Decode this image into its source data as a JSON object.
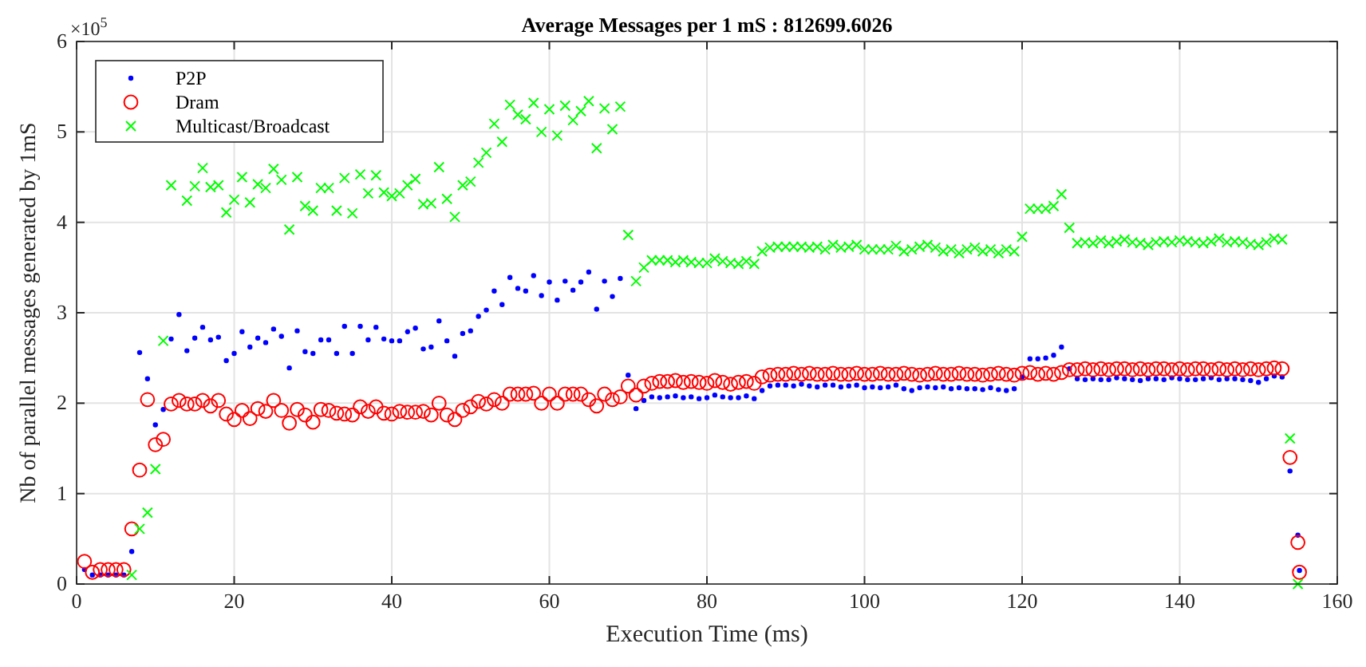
{
  "chart_data": {
    "type": "scatter",
    "title": "Average Messages per 1 mS : 812699.6026",
    "xlabel": "Execution Time (ms)",
    "ylabel": "Nb of parallel messages generated by 1mS",
    "annotations": [
      "×10$^{5}$"
    ],
    "xlim": [
      0,
      160
    ],
    "xticks": [
      0,
      20,
      40,
      60,
      80,
      100,
      120,
      140,
      160
    ],
    "ylim": [
      0,
      6
    ],
    "yticks": [
      0,
      1,
      2,
      3,
      4,
      5,
      6
    ],
    "grid": true,
    "legend": "top left",
    "series": [
      {
        "name": "P2P",
        "color": "#0000ff",
        "marker": "point",
        "x": [
          1,
          2,
          3,
          4,
          5,
          6,
          7,
          8,
          9,
          10,
          11,
          12,
          13,
          14,
          15,
          16,
          17,
          18,
          19,
          20,
          21,
          22,
          23,
          24,
          25,
          26,
          27,
          28,
          29,
          30,
          31,
          32,
          33,
          34,
          35,
          36,
          37,
          38,
          39,
          40,
          41,
          42,
          43,
          44,
          45,
          46,
          47,
          48,
          49,
          50,
          51,
          52,
          53,
          54,
          55,
          56,
          57,
          58,
          59,
          60,
          61,
          62,
          63,
          64,
          65,
          66,
          67,
          68,
          69,
          70,
          71,
          72,
          73,
          74,
          75,
          76,
          77,
          78,
          79,
          80,
          81,
          82,
          83,
          84,
          85,
          86,
          87,
          88,
          89,
          90,
          91,
          92,
          93,
          94,
          95,
          96,
          97,
          98,
          99,
          100,
          101,
          102,
          103,
          104,
          105,
          106,
          107,
          108,
          109,
          110,
          111,
          112,
          113,
          114,
          115,
          116,
          117,
          118,
          119,
          120,
          121,
          122,
          123,
          124,
          125,
          126,
          127,
          128,
          129,
          130,
          131,
          132,
          133,
          134,
          135,
          136,
          137,
          138,
          139,
          140,
          141,
          142,
          143,
          144,
          145,
          146,
          147,
          148,
          149,
          150,
          151,
          152,
          153,
          154,
          155,
          155.2
        ],
        "values": [
          0.16,
          0.1,
          0.1,
          0.1,
          0.1,
          0.1,
          0.36,
          2.56,
          2.27,
          1.76,
          1.93,
          2.71,
          2.98,
          2.58,
          2.72,
          2.84,
          2.7,
          2.73,
          2.47,
          2.55,
          2.79,
          2.62,
          2.72,
          2.67,
          2.82,
          2.74,
          2.39,
          2.8,
          2.57,
          2.55,
          2.7,
          2.7,
          2.55,
          2.85,
          2.55,
          2.85,
          2.7,
          2.84,
          2.71,
          2.69,
          2.69,
          2.79,
          2.83,
          2.6,
          2.62,
          2.91,
          2.69,
          2.52,
          2.77,
          2.8,
          2.96,
          3.03,
          3.24,
          3.09,
          3.39,
          3.27,
          3.24,
          3.41,
          3.19,
          3.34,
          3.14,
          3.35,
          3.25,
          3.34,
          3.45,
          3.04,
          3.35,
          3.18,
          3.38,
          2.31,
          1.94,
          2.03,
          2.07,
          2.06,
          2.07,
          2.08,
          2.06,
          2.07,
          2.05,
          2.06,
          2.09,
          2.07,
          2.06,
          2.06,
          2.08,
          2.05,
          2.14,
          2.19,
          2.2,
          2.2,
          2.19,
          2.21,
          2.19,
          2.18,
          2.2,
          2.2,
          2.18,
          2.19,
          2.2,
          2.17,
          2.18,
          2.17,
          2.18,
          2.2,
          2.16,
          2.14,
          2.17,
          2.18,
          2.17,
          2.18,
          2.16,
          2.17,
          2.16,
          2.16,
          2.15,
          2.17,
          2.15,
          2.14,
          2.16,
          2.29,
          2.49,
          2.49,
          2.5,
          2.53,
          2.62,
          2.38,
          2.27,
          2.26,
          2.27,
          2.26,
          2.26,
          2.28,
          2.27,
          2.26,
          2.25,
          2.27,
          2.27,
          2.26,
          2.28,
          2.27,
          2.26,
          2.26,
          2.27,
          2.28,
          2.26,
          2.27,
          2.27,
          2.26,
          2.25,
          2.23,
          2.27,
          2.3,
          2.29,
          1.25,
          0.54,
          0.15
        ]
      },
      {
        "name": "Dram",
        "color": "#ff0000",
        "marker": "circle",
        "x": [
          1,
          2,
          3,
          4,
          5,
          6,
          7,
          8,
          9,
          10,
          11,
          12,
          13,
          14,
          15,
          16,
          17,
          18,
          19,
          20,
          21,
          22,
          23,
          24,
          25,
          26,
          27,
          28,
          29,
          30,
          31,
          32,
          33,
          34,
          35,
          36,
          37,
          38,
          39,
          40,
          41,
          42,
          43,
          44,
          45,
          46,
          47,
          48,
          49,
          50,
          51,
          52,
          53,
          54,
          55,
          56,
          57,
          58,
          59,
          60,
          61,
          62,
          63,
          64,
          65,
          66,
          67,
          68,
          69,
          70,
          71,
          72,
          73,
          74,
          75,
          76,
          77,
          78,
          79,
          80,
          81,
          82,
          83,
          84,
          85,
          86,
          87,
          88,
          89,
          90,
          91,
          92,
          93,
          94,
          95,
          96,
          97,
          98,
          99,
          100,
          101,
          102,
          103,
          104,
          105,
          106,
          107,
          108,
          109,
          110,
          111,
          112,
          113,
          114,
          115,
          116,
          117,
          118,
          119,
          120,
          121,
          122,
          123,
          124,
          125,
          126,
          127,
          128,
          129,
          130,
          131,
          132,
          133,
          134,
          135,
          136,
          137,
          138,
          139,
          140,
          141,
          142,
          143,
          144,
          145,
          146,
          147,
          148,
          149,
          150,
          151,
          152,
          153,
          154,
          155,
          155.2
        ],
        "values": [
          0.25,
          0.13,
          0.16,
          0.16,
          0.16,
          0.16,
          0.61,
          1.26,
          2.04,
          1.54,
          1.6,
          1.99,
          2.03,
          1.99,
          1.99,
          2.03,
          1.97,
          2.03,
          1.88,
          1.82,
          1.92,
          1.83,
          1.94,
          1.91,
          2.03,
          1.92,
          1.78,
          1.93,
          1.87,
          1.79,
          1.93,
          1.92,
          1.89,
          1.88,
          1.87,
          1.96,
          1.91,
          1.96,
          1.89,
          1.88,
          1.91,
          1.9,
          1.9,
          1.91,
          1.87,
          2,
          1.87,
          1.82,
          1.92,
          1.96,
          2.02,
          1.99,
          2.04,
          2,
          2.1,
          2.1,
          2.1,
          2.11,
          2,
          2.1,
          2,
          2.1,
          2.1,
          2.1,
          2.04,
          1.97,
          2.1,
          2.04,
          2.07,
          2.19,
          2.09,
          2.19,
          2.22,
          2.24,
          2.24,
          2.25,
          2.23,
          2.24,
          2.23,
          2.22,
          2.25,
          2.23,
          2.21,
          2.23,
          2.24,
          2.22,
          2.29,
          2.31,
          2.32,
          2.32,
          2.33,
          2.32,
          2.33,
          2.32,
          2.32,
          2.33,
          2.32,
          2.32,
          2.33,
          2.32,
          2.32,
          2.33,
          2.32,
          2.32,
          2.33,
          2.32,
          2.31,
          2.32,
          2.33,
          2.32,
          2.32,
          2.33,
          2.32,
          2.32,
          2.31,
          2.32,
          2.33,
          2.32,
          2.31,
          2.33,
          2.34,
          2.32,
          2.33,
          2.32,
          2.34,
          2.37,
          2.37,
          2.38,
          2.37,
          2.38,
          2.37,
          2.38,
          2.38,
          2.37,
          2.38,
          2.37,
          2.38,
          2.38,
          2.37,
          2.38,
          2.37,
          2.38,
          2.38,
          2.37,
          2.38,
          2.37,
          2.38,
          2.37,
          2.38,
          2.37,
          2.38,
          2.39,
          2.38,
          1.4,
          0.46,
          0.13
        ]
      },
      {
        "name": "Multicast/Broadcast",
        "color": "#00ff00",
        "marker": "cross",
        "x": [
          7,
          8,
          9,
          10,
          11,
          12,
          14,
          15,
          16,
          17,
          18,
          19,
          20,
          21,
          22,
          23,
          24,
          25,
          26,
          27,
          28,
          29,
          30,
          31,
          32,
          33,
          34,
          35,
          36,
          37,
          38,
          39,
          40,
          41,
          42,
          43,
          44,
          45,
          46,
          47,
          48,
          49,
          50,
          51,
          52,
          53,
          54,
          55,
          56,
          57,
          58,
          59,
          60,
          61,
          62,
          63,
          64,
          65,
          66,
          67,
          68,
          69,
          70,
          71,
          72,
          73,
          74,
          75,
          76,
          77,
          78,
          79,
          80,
          81,
          82,
          83,
          84,
          85,
          86,
          87,
          88,
          89,
          90,
          91,
          92,
          93,
          94,
          95,
          96,
          97,
          98,
          99,
          100,
          101,
          102,
          103,
          104,
          105,
          106,
          107,
          108,
          109,
          110,
          111,
          112,
          113,
          114,
          115,
          116,
          117,
          118,
          119,
          120,
          121,
          122,
          123,
          124,
          125,
          126,
          127,
          128,
          129,
          130,
          131,
          132,
          133,
          134,
          135,
          136,
          137,
          138,
          139,
          140,
          141,
          142,
          143,
          144,
          145,
          146,
          147,
          148,
          149,
          150,
          151,
          152,
          153,
          154,
          155
        ],
        "values": [
          0.1,
          0.61,
          0.79,
          1.27,
          2.69,
          4.41,
          4.24,
          4.4,
          4.6,
          4.39,
          4.41,
          4.11,
          4.25,
          4.5,
          4.22,
          4.42,
          4.38,
          4.59,
          4.47,
          3.92,
          4.5,
          4.18,
          4.13,
          4.38,
          4.38,
          4.13,
          4.49,
          4.1,
          4.53,
          4.32,
          4.52,
          4.33,
          4.29,
          4.32,
          4.41,
          4.48,
          4.2,
          4.21,
          4.61,
          4.26,
          4.06,
          4.41,
          4.45,
          4.66,
          4.77,
          5.09,
          4.89,
          5.3,
          5.19,
          5.14,
          5.32,
          5,
          5.25,
          4.96,
          5.29,
          5.13,
          5.23,
          5.34,
          4.82,
          5.26,
          5.03,
          5.28,
          3.86,
          3.35,
          3.5,
          3.58,
          3.58,
          3.58,
          3.56,
          3.58,
          3.56,
          3.55,
          3.55,
          3.6,
          3.57,
          3.55,
          3.54,
          3.57,
          3.54,
          3.68,
          3.72,
          3.73,
          3.73,
          3.73,
          3.73,
          3.72,
          3.73,
          3.7,
          3.75,
          3.72,
          3.73,
          3.75,
          3.7,
          3.7,
          3.7,
          3.7,
          3.74,
          3.68,
          3.7,
          3.73,
          3.75,
          3.72,
          3.68,
          3.7,
          3.66,
          3.7,
          3.72,
          3.68,
          3.7,
          3.66,
          3.7,
          3.68,
          3.84,
          4.15,
          4.15,
          4.15,
          4.18,
          4.31,
          3.94,
          3.77,
          3.78,
          3.77,
          3.8,
          3.77,
          3.79,
          3.81,
          3.78,
          3.77,
          3.75,
          3.78,
          3.79,
          3.78,
          3.8,
          3.79,
          3.78,
          3.77,
          3.79,
          3.82,
          3.78,
          3.79,
          3.78,
          3.76,
          3.75,
          3.78,
          3.82,
          3.81,
          1.61,
          0
        ]
      }
    ]
  }
}
